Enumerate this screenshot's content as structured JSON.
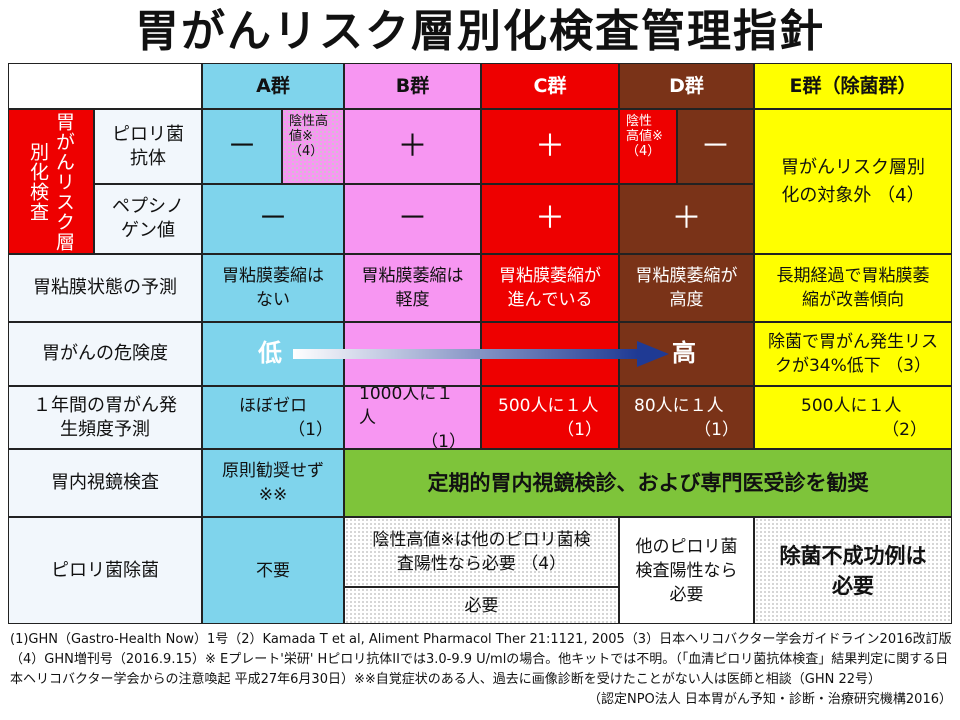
{
  "title": "胃がんリスク層別化検査管理指針",
  "colors": {
    "a": "#7fd4ec",
    "b": "#f796f2",
    "c": "#ee0000",
    "d": "#7a3318",
    "e": "#ffff00",
    "green": "#7ec43a",
    "label": "#f2f7fc"
  },
  "header": {
    "a": "A群",
    "b": "B群",
    "c": "C群",
    "d": "D群",
    "e": "E群（除菌群）"
  },
  "risk_label": "胃がんリスク層別化検査",
  "hp_antibody": {
    "label": "ピロリ菌抗体",
    "a": "－",
    "a_note": "陰性高値※（4）",
    "b": "＋",
    "c": "＋",
    "d_note": "陰性高値※（4）",
    "d": "－",
    "e": "胃がんリスク層別化の対象外 （4）"
  },
  "pepsinogen": {
    "label": "ペプシノゲン値",
    "a": "－",
    "b": "－",
    "c": "＋",
    "d": "＋"
  },
  "mucosa": {
    "label": "胃粘膜状態の予測",
    "a": "胃粘膜萎縮はない",
    "b": "胃粘膜萎縮は軽度",
    "c": "胃粘膜萎縮が進んでいる",
    "d": "胃粘膜萎縮が高度",
    "e": "長期経過で胃粘膜萎縮が改善傾向"
  },
  "danger": {
    "label": "胃がんの危険度",
    "low": "低",
    "high": "高",
    "e": "除菌で胃がん発生リスクが34%低下 （3）"
  },
  "incidence": {
    "label": "１年間の胃がん発生頻度予測",
    "a": "ほぼゼロ",
    "a_ref": "（1）",
    "b": "1000人に１人",
    "b_ref": "（1）",
    "c": "500人に１人",
    "c_ref": "（1）",
    "d": "80人に１人",
    "d_ref": "（1）",
    "e": "500人に１人",
    "e_ref": "（2）"
  },
  "endoscopy": {
    "label": "胃内視鏡検査",
    "a": "原則勧奨せず※※",
    "rest": "定期的胃内視鏡検診、および専門医受診を勧奨"
  },
  "eradication": {
    "label": "ピロリ菌除菌",
    "a": "不要",
    "bc_top": "陰性高値※は他のピロリ菌検査陽性なら必要 （4）",
    "bc_bottom": "必要",
    "d": "他のピロリ菌検査陽性なら必要",
    "e": "除菌不成功例は必要"
  },
  "footer": {
    "line1": "(1)GHN（Gastro-Health Now）1号（2）Kamada T et al, Aliment Pharmacol Ther 21:1121, 2005（3）日本ヘリコバクター学会ガイドライン2016改訂版（4）GHN増刊号（2016.9.15）※ Eプレート'栄研' Hピロリ抗体IIでは3.0-9.9 U/mlの場合。他キットでは不明。（「血清ピロリ菌抗体検査」結果判定に関する日本ヘリコバクター学会からの注意喚起 平成27年6月30日）※※自覚症状のある人、過去に画像診断を受けたことがない人は医師と相談（GHN 22号）",
    "org": "（認定NPO法人 日本胃がん予知・診断・治療研究機構2016）"
  }
}
